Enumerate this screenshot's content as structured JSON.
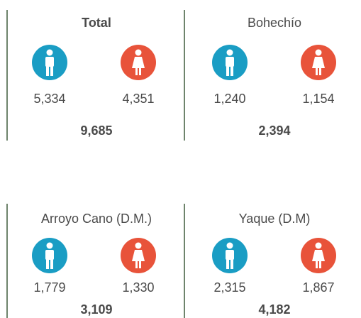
{
  "panels": [
    {
      "title": "Total",
      "male": "5,334",
      "female": "4,351",
      "total": "9,685"
    },
    {
      "title": "Bohechío",
      "male": "1,240",
      "female": "1,154",
      "total": "2,394"
    },
    {
      "title": "Arroyo Cano (D.M.)",
      "male": "1,779",
      "female": "1,330",
      "total": "3,109"
    },
    {
      "title": "Yaque (D.M)",
      "male": "2,315",
      "female": "1,867",
      "total": "4,182"
    }
  ]
}
